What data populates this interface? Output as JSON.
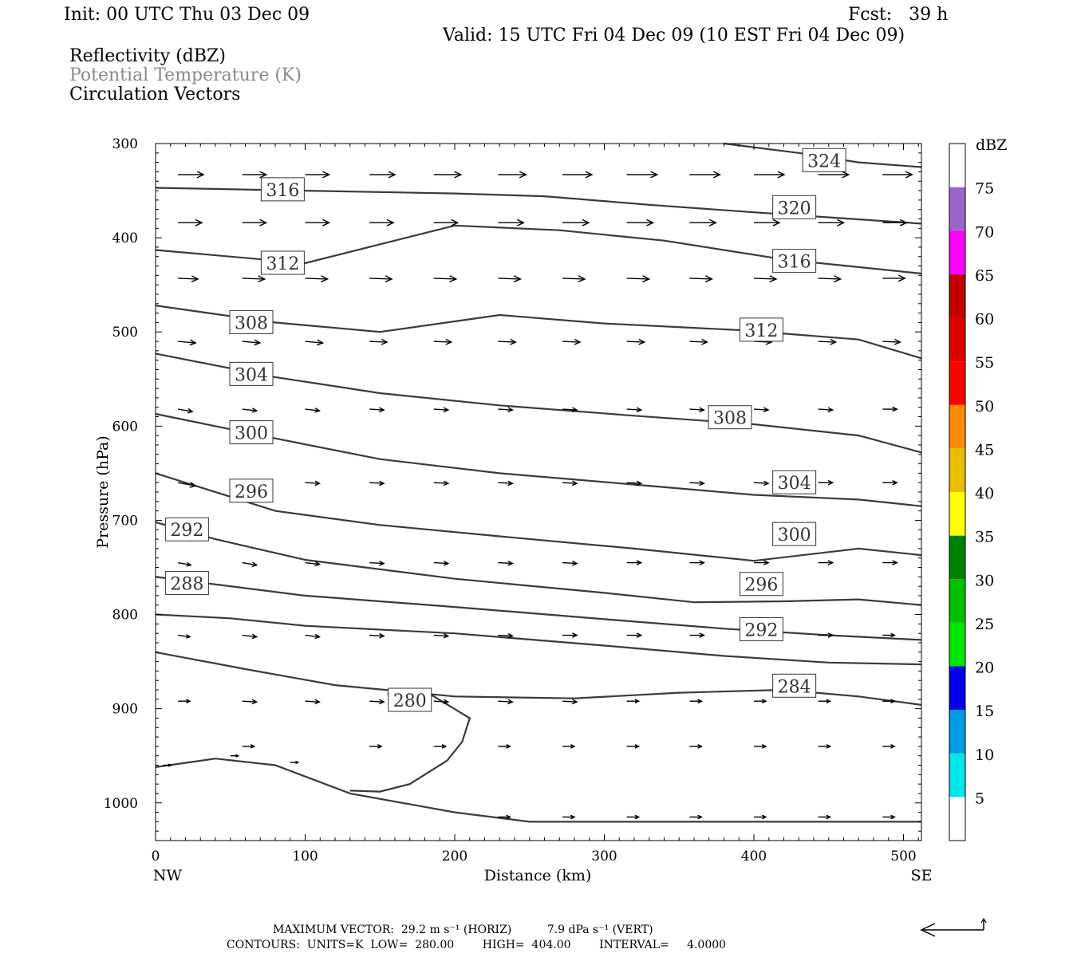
{
  "header": {
    "init": "Init: 00 UTC Thu 03 Dec 09",
    "fcst": "Fcst:   39 h",
    "valid": "Valid: 15 UTC Fri 04 Dec 09 (10 EST Fri 04 Dec 09)",
    "fields": [
      "Reflectivity (dBZ)",
      "Potential Temperature (K)",
      "Circulation Vectors"
    ]
  },
  "footer": {
    "max_vector": "MAXIMUM VECTOR:  29.2 m s⁻¹ (HORIZ)          7.9 dPa s⁻¹ (VERT)",
    "contours": "CONTOURS:  UNITS=K  LOW=  280.00        HIGH=  404.00        INTERVAL=     4.0000"
  },
  "chart_data": {
    "type": "line",
    "title": "",
    "xlabel": "Distance (km)",
    "ylabel": "Pressure (hPa)",
    "xlim": [
      0,
      512
    ],
    "ylim": [
      1040,
      300
    ],
    "x_ticks": [
      0,
      100,
      200,
      300,
      400,
      500
    ],
    "y_ticks": [
      300,
      400,
      500,
      600,
      700,
      800,
      900,
      1000
    ],
    "x_end_labels": {
      "left": "NW",
      "right": "SE"
    },
    "contour_color": "#3a3a3a",
    "series": [
      {
        "name": "324",
        "points": [
          [
            380,
            300
          ],
          [
            430,
            310
          ],
          [
            470,
            320
          ],
          [
            512,
            325
          ]
        ]
      },
      {
        "name": "320",
        "points": [
          [
            0,
            347
          ],
          [
            100,
            350
          ],
          [
            200,
            353
          ],
          [
            260,
            356
          ],
          [
            330,
            365
          ],
          [
            400,
            373
          ],
          [
            512,
            385
          ]
        ]
      },
      {
        "name": "316",
        "points": [
          [
            0,
            413
          ],
          [
            100,
            427
          ],
          [
            200,
            387
          ],
          [
            270,
            392
          ],
          [
            340,
            403
          ],
          [
            420,
            423
          ],
          [
            512,
            438
          ]
        ]
      },
      {
        "name": "312",
        "points": [
          [
            0,
            472
          ],
          [
            80,
            490
          ],
          [
            150,
            500
          ],
          [
            230,
            482
          ],
          [
            300,
            491
          ],
          [
            390,
            498
          ],
          [
            470,
            508
          ],
          [
            512,
            528
          ]
        ]
      },
      {
        "name": "308",
        "points": [
          [
            0,
            523
          ],
          [
            80,
            548
          ],
          [
            150,
            565
          ],
          [
            230,
            578
          ],
          [
            320,
            589
          ],
          [
            400,
            598
          ],
          [
            470,
            610
          ],
          [
            512,
            628
          ]
        ]
      },
      {
        "name": "304",
        "points": [
          [
            0,
            587
          ],
          [
            80,
            613
          ],
          [
            150,
            635
          ],
          [
            230,
            650
          ],
          [
            320,
            662
          ],
          [
            400,
            673
          ],
          [
            470,
            678
          ],
          [
            512,
            685
          ]
        ]
      },
      {
        "name": "300",
        "points": [
          [
            0,
            650
          ],
          [
            80,
            690
          ],
          [
            150,
            705
          ],
          [
            230,
            717
          ],
          [
            320,
            730
          ],
          [
            400,
            743
          ],
          [
            470,
            730
          ],
          [
            512,
            737
          ]
        ]
      },
      {
        "name": "296",
        "points": [
          [
            0,
            702
          ],
          [
            40,
            720
          ],
          [
            100,
            742
          ],
          [
            200,
            762
          ],
          [
            300,
            777
          ],
          [
            360,
            787
          ],
          [
            420,
            786
          ],
          [
            470,
            784
          ],
          [
            512,
            790
          ]
        ]
      },
      {
        "name": "292",
        "points": [
          [
            0,
            760
          ],
          [
            50,
            770
          ],
          [
            100,
            780
          ],
          [
            200,
            792
          ],
          [
            300,
            805
          ],
          [
            380,
            815
          ],
          [
            450,
            822
          ],
          [
            512,
            827
          ]
        ]
      },
      {
        "name": "288",
        "points": [
          [
            0,
            800
          ],
          [
            50,
            804
          ],
          [
            100,
            812
          ],
          [
            200,
            820
          ],
          [
            300,
            833
          ],
          [
            380,
            844
          ],
          [
            450,
            851
          ],
          [
            512,
            853
          ]
        ]
      },
      {
        "name": "284",
        "points": [
          [
            0,
            840
          ],
          [
            60,
            858
          ],
          [
            120,
            875
          ],
          [
            200,
            887
          ],
          [
            280,
            889
          ],
          [
            350,
            883
          ],
          [
            420,
            880
          ],
          [
            470,
            887
          ],
          [
            512,
            896
          ]
        ]
      },
      {
        "name": "280",
        "points": [
          [
            0,
            962
          ],
          [
            40,
            953
          ],
          [
            80,
            960
          ],
          [
            130,
            990
          ],
          [
            200,
            1010
          ],
          [
            250,
            1020
          ],
          [
            300,
            1020
          ],
          [
            400,
            1020
          ],
          [
            512,
            1020
          ]
        ]
      },
      {
        "name": "280",
        "points": [
          [
            130,
            987
          ],
          [
            150,
            988
          ],
          [
            170,
            980
          ],
          [
            195,
            955
          ],
          [
            205,
            935
          ],
          [
            210,
            910
          ],
          [
            185,
            886
          ],
          [
            155,
            884
          ]
        ]
      }
    ],
    "contour_labels": [
      {
        "text": "324",
        "x": 447,
        "y": 318
      },
      {
        "text": "320",
        "x": 427,
        "y": 368
      },
      {
        "text": "316",
        "x": 85,
        "y": 349
      },
      {
        "text": "316",
        "x": 427,
        "y": 425
      },
      {
        "text": "312",
        "x": 85,
        "y": 427
      },
      {
        "text": "312",
        "x": 405,
        "y": 498
      },
      {
        "text": "308",
        "x": 64,
        "y": 490
      },
      {
        "text": "308",
        "x": 384,
        "y": 591
      },
      {
        "text": "304",
        "x": 64,
        "y": 545
      },
      {
        "text": "304",
        "x": 427,
        "y": 660
      },
      {
        "text": "300",
        "x": 64,
        "y": 607
      },
      {
        "text": "300",
        "x": 427,
        "y": 715
      },
      {
        "text": "296",
        "x": 64,
        "y": 669
      },
      {
        "text": "296",
        "x": 405,
        "y": 768
      },
      {
        "text": "292",
        "x": 21,
        "y": 710
      },
      {
        "text": "292",
        "x": 405,
        "y": 816
      },
      {
        "text": "288",
        "x": 21,
        "y": 767
      },
      {
        "text": "284",
        "x": 427,
        "y": 876
      },
      {
        "text": "280",
        "x": 170,
        "y": 891
      }
    ],
    "vector_grid": {
      "x": [
        15,
        58,
        100,
        143,
        186,
        229,
        272,
        315,
        357,
        400,
        443,
        486
      ],
      "rows": [
        {
          "p": 333,
          "u": [
            32,
            30,
            30,
            32,
            34,
            35,
            37,
            38,
            38,
            38,
            38,
            37
          ],
          "w": [
            0,
            0,
            0,
            0,
            0,
            0,
            0,
            0,
            0,
            0,
            0,
            0
          ]
        },
        {
          "p": 384,
          "u": [
            30,
            30,
            30,
            30,
            30,
            32,
            33,
            33,
            33,
            32,
            32,
            30
          ],
          "w": [
            0,
            0,
            0,
            0,
            0,
            0,
            0,
            0,
            0,
            0,
            0,
            0
          ]
        },
        {
          "p": 443,
          "u": [
            25,
            28,
            28,
            28,
            28,
            28,
            28,
            28,
            28,
            28,
            28,
            28
          ],
          "w": [
            1,
            1,
            1,
            1,
            1,
            1,
            1,
            1,
            1,
            1,
            1,
            0
          ]
        },
        {
          "p": 510,
          "u": [
            22,
            22,
            22,
            22,
            22,
            22,
            22,
            22,
            22,
            22,
            22,
            22
          ],
          "w": [
            2,
            2,
            2,
            1,
            1,
            1,
            1,
            1,
            1,
            1,
            1,
            1
          ]
        },
        {
          "p": 582,
          "u": [
            18,
            18,
            18,
            18,
            18,
            18,
            18,
            18,
            18,
            18,
            18,
            18
          ],
          "w": [
            3,
            2,
            2,
            1,
            1,
            1,
            1,
            1,
            1,
            1,
            1,
            0
          ]
        },
        {
          "p": 660,
          "u": [
            22,
            20,
            18,
            18,
            18,
            18,
            18,
            18,
            18,
            18,
            18,
            18
          ],
          "w": [
            4,
            2,
            1,
            1,
            1,
            1,
            1,
            1,
            1,
            1,
            0,
            0
          ]
        },
        {
          "p": 745,
          "u": [
            16,
            18,
            18,
            18,
            18,
            18,
            18,
            18,
            18,
            18,
            18,
            18
          ],
          "w": [
            3,
            3,
            2,
            1,
            1,
            1,
            1,
            0,
            0,
            0,
            0,
            0
          ]
        },
        {
          "p": 822,
          "u": [
            15,
            18,
            18,
            18,
            18,
            18,
            18,
            18,
            18,
            18,
            18,
            15
          ],
          "w": [
            2,
            2,
            2,
            1,
            1,
            1,
            0,
            0,
            0,
            0,
            0,
            0
          ]
        },
        {
          "p": 892,
          "u": [
            15,
            18,
            18,
            18,
            18,
            18,
            18,
            15,
            15,
            15,
            15,
            15
          ],
          "w": [
            0,
            1,
            1,
            1,
            1,
            1,
            1,
            0,
            0,
            0,
            0,
            0
          ]
        },
        {
          "p": 940,
          "u": [
            0,
            15,
            0,
            15,
            15,
            15,
            15,
            15,
            15,
            15,
            15,
            15
          ],
          "w": [
            0,
            0,
            0,
            0,
            0,
            0,
            0,
            0,
            0,
            0,
            0,
            0
          ]
        },
        {
          "p": 1015,
          "u": [
            0,
            0,
            0,
            0,
            0,
            15,
            15,
            15,
            15,
            15,
            15,
            15
          ],
          "w": [
            0,
            0,
            0,
            0,
            0,
            0,
            0,
            0,
            0,
            0,
            0,
            0
          ]
        }
      ],
      "extra": [
        {
          "x": 5,
          "p": 960,
          "u": 10,
          "w": 0
        },
        {
          "x": 50,
          "p": 950,
          "u": 10,
          "w": 0
        },
        {
          "x": 90,
          "p": 957,
          "u": 10,
          "w": 0
        }
      ]
    },
    "colorbar": {
      "unit": "dBZ",
      "levels": [
        5,
        10,
        15,
        20,
        25,
        30,
        35,
        40,
        45,
        50,
        55,
        60,
        65,
        70,
        75
      ],
      "colors": [
        "#00e6e6",
        "#0099e6",
        "#0000e6",
        "#00e600",
        "#00c000",
        "#008000",
        "#ffff00",
        "#e6c000",
        "#ff8c00",
        "#ff0000",
        "#e00000",
        "#c00000",
        "#ff00ff",
        "#9966cc",
        "#ffffff"
      ]
    }
  }
}
